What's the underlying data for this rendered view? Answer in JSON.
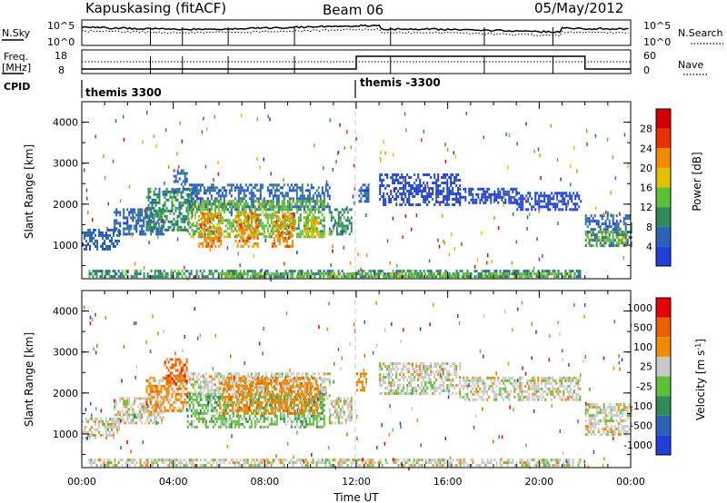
{
  "header": {
    "station": "Kapuskasing (fitACF)",
    "beam": "Beam 06",
    "date": "05/May/2012"
  },
  "strip_labels": {
    "nsky": "N.Sky",
    "nsearch": "N.Search",
    "freq_a": "Freq.",
    "freq_b": "[MHz]",
    "nave": "Nave",
    "cpid": "CPID"
  },
  "strip_ticks": {
    "nsky_top": "10^5",
    "nsky_bottom": "10^0",
    "nsearch_top": "10^5",
    "nsearch_bottom": "10^0",
    "freq_top": "18",
    "freq_bottom": "8",
    "nave_top": "60",
    "nave_bottom": "0"
  },
  "cpid_labels": {
    "first": "themis 3300",
    "second": "themis -3300"
  },
  "chart_data": [
    {
      "type": "heatmap",
      "parameter": "Power",
      "colorbar_label": "Power [dB]",
      "colorbar_ticks": [
        "4",
        "8",
        "12",
        "16",
        "20",
        "24",
        "28"
      ],
      "colors": [
        "#1f3fd6",
        "#2b62b8",
        "#2f8a5a",
        "#5fbf3a",
        "#e0c000",
        "#f08a00",
        "#e83000",
        "#d00000"
      ],
      "ylabel": "Slant Range [km]",
      "yticks": [
        "1000",
        "2000",
        "3000",
        "4000"
      ],
      "ylim": [
        180,
        4500
      ],
      "xlim": [
        "00:00",
        "24:00"
      ],
      "regions": [
        {
          "t0": 0.0,
          "t1": 1.6,
          "r0": 900,
          "r1": 1400,
          "level": 1
        },
        {
          "t0": 1.4,
          "t1": 3.6,
          "r0": 1250,
          "r1": 1900,
          "level": 1
        },
        {
          "t0": 2.8,
          "t1": 4.8,
          "r0": 1400,
          "r1": 2400,
          "level": 2
        },
        {
          "t0": 4.0,
          "t1": 4.6,
          "r0": 2300,
          "r1": 2850,
          "level": 1
        },
        {
          "t0": 4.6,
          "t1": 10.8,
          "r0": 1900,
          "r1": 2500,
          "level": 1
        },
        {
          "t0": 4.6,
          "t1": 10.6,
          "r0": 1200,
          "r1": 2100,
          "level": 3
        },
        {
          "t0": 5.1,
          "t1": 6.1,
          "r0": 1000,
          "r1": 1800,
          "level": 5
        },
        {
          "t0": 6.7,
          "t1": 7.7,
          "r0": 1000,
          "r1": 1800,
          "level": 5
        },
        {
          "t0": 8.3,
          "t1": 9.3,
          "r0": 1000,
          "r1": 1800,
          "level": 5
        },
        {
          "t0": 9.7,
          "t1": 10.4,
          "r0": 1200,
          "r1": 1700,
          "level": 4
        },
        {
          "t0": 10.8,
          "t1": 11.8,
          "r0": 1250,
          "r1": 1900,
          "level": 2
        },
        {
          "t0": 12.1,
          "t1": 12.5,
          "r0": 2050,
          "r1": 2500,
          "level": 1
        },
        {
          "t0": 0.3,
          "t1": 21.8,
          "r0": 220,
          "r1": 400,
          "level": 2
        },
        {
          "t0": 6.0,
          "t1": 21.5,
          "r0": 230,
          "r1": 330,
          "level": 3
        },
        {
          "t0": 13.0,
          "t1": 16.5,
          "r0": 2000,
          "r1": 2750,
          "level": 0
        },
        {
          "t0": 16.5,
          "t1": 19.0,
          "r0": 2050,
          "r1": 2400,
          "level": 0
        },
        {
          "t0": 19.0,
          "t1": 21.8,
          "r0": 1850,
          "r1": 2300,
          "level": 0
        },
        {
          "t0": 22.0,
          "t1": 24.0,
          "r0": 1000,
          "r1": 1750,
          "level": 1
        },
        {
          "t0": 22.0,
          "t1": 23.9,
          "r0": 1000,
          "r1": 1350,
          "level": 3
        }
      ]
    },
    {
      "type": "heatmap",
      "parameter": "Velocity",
      "colorbar_label": "Velocity [m s^-1]",
      "colorbar_ticks": [
        "1000",
        "500",
        "100",
        "25",
        "-25",
        "-100",
        "-500",
        "-1000"
      ],
      "colors": [
        "#1f3fd6",
        "#2b62b8",
        "#2f8a5a",
        "#5fbf3a",
        "#c8c8c8",
        "#f08a00",
        "#e86000",
        "#e80000"
      ],
      "ylabel": "Slant Range [km]",
      "yticks": [
        "1000",
        "2000",
        "3000",
        "4000"
      ],
      "ylim": [
        180,
        4500
      ],
      "xlim": [
        "00:00",
        "24:00"
      ],
      "xlabel": "Time UT",
      "xticks": [
        "00:00",
        "04:00",
        "08:00",
        "12:00",
        "16:00",
        "20:00",
        "00:00"
      ],
      "regions": [
        {
          "t0": 0.0,
          "t1": 1.6,
          "r0": 900,
          "r1": 1400,
          "level": 4
        },
        {
          "t0": 1.4,
          "t1": 3.6,
          "r0": 1250,
          "r1": 1900,
          "level": 4
        },
        {
          "t0": 2.8,
          "t1": 4.6,
          "r0": 1600,
          "r1": 2400,
          "level": 5
        },
        {
          "t0": 3.6,
          "t1": 4.6,
          "r0": 2300,
          "r1": 2850,
          "level": 6
        },
        {
          "t0": 4.6,
          "t1": 10.8,
          "r0": 1900,
          "r1": 2500,
          "level": 4
        },
        {
          "t0": 4.6,
          "t1": 10.6,
          "r0": 1150,
          "r1": 2000,
          "level": 3
        },
        {
          "t0": 6.0,
          "t1": 10.4,
          "r0": 1500,
          "r1": 2400,
          "level": 5
        },
        {
          "t0": 10.8,
          "t1": 11.8,
          "r0": 1250,
          "r1": 1900,
          "level": 4
        },
        {
          "t0": 12.0,
          "t1": 12.4,
          "r0": 2050,
          "r1": 2500,
          "level": 5
        },
        {
          "t0": 0.3,
          "t1": 21.8,
          "r0": 220,
          "r1": 400,
          "level": 4
        },
        {
          "t0": 13.0,
          "t1": 16.5,
          "r0": 2000,
          "r1": 2750,
          "level": 4
        },
        {
          "t0": 16.5,
          "t1": 21.8,
          "r0": 1850,
          "r1": 2400,
          "level": 4
        },
        {
          "t0": 22.0,
          "t1": 24.0,
          "r0": 1000,
          "r1": 1750,
          "level": 4
        }
      ]
    }
  ]
}
